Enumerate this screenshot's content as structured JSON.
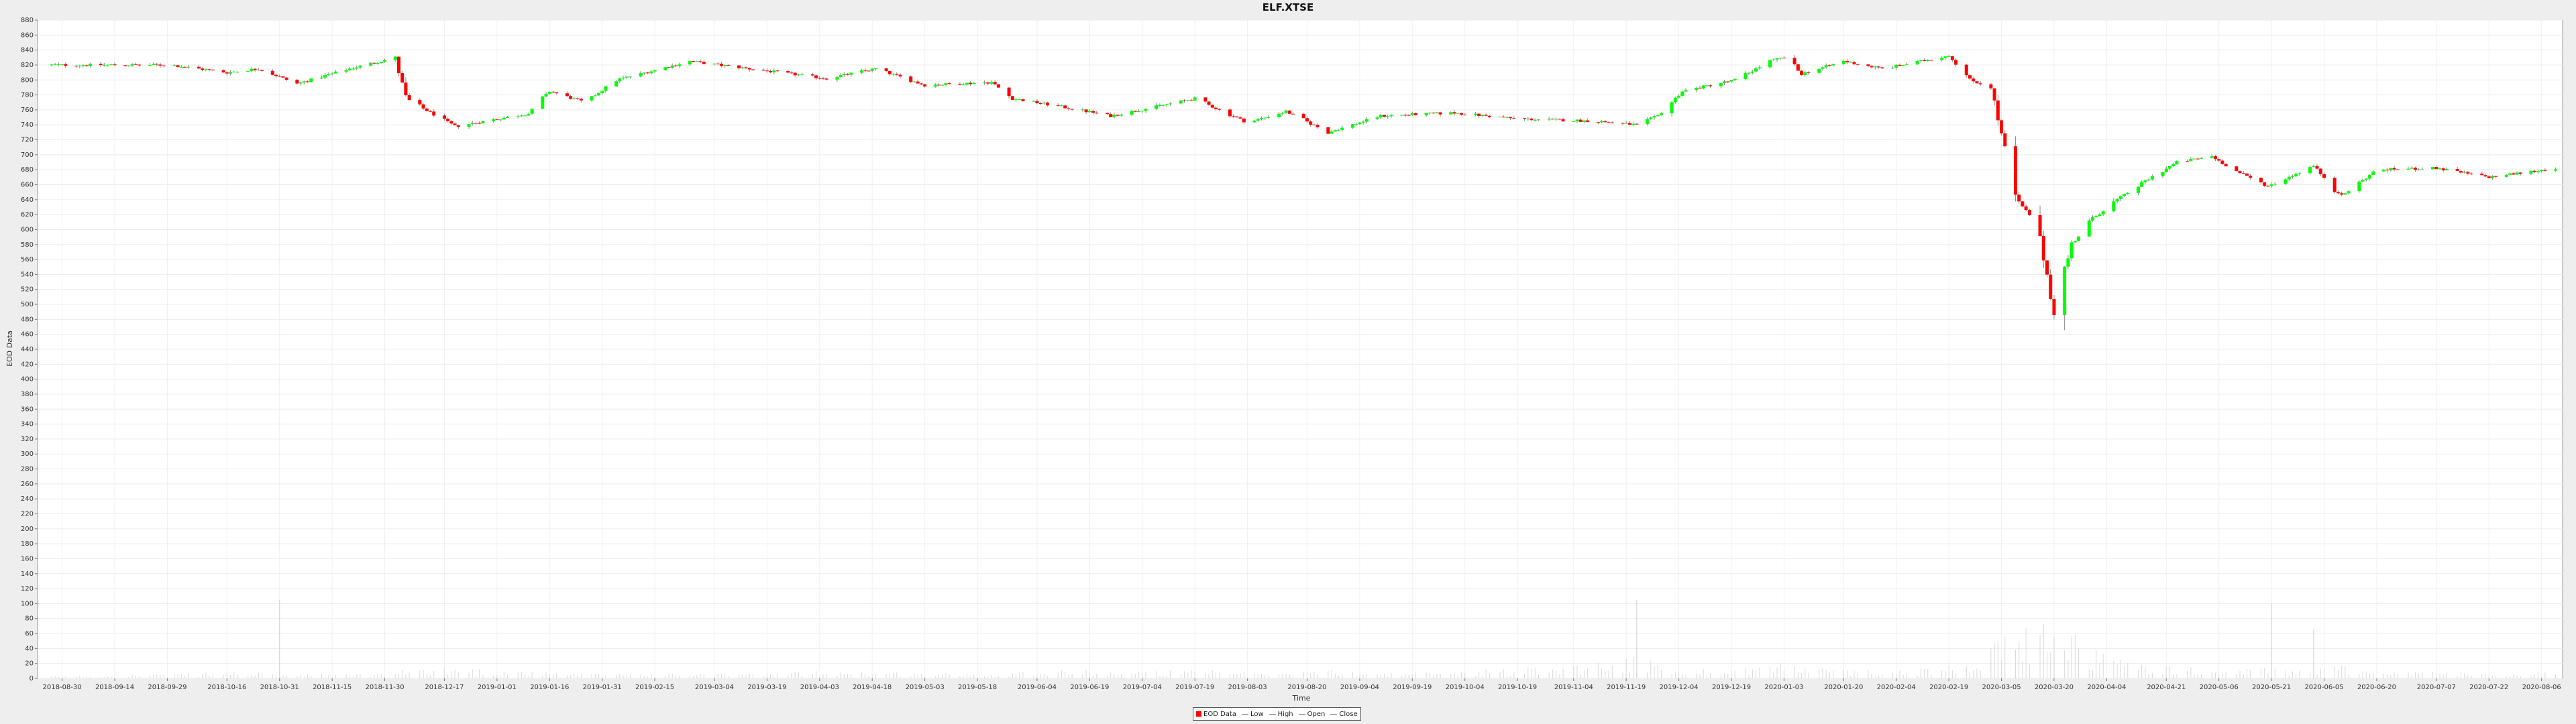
{
  "chart_data": {
    "type": "candlestick",
    "title": "ELF.XTSE",
    "xlabel": "Time",
    "ylabel": "EOD Data",
    "ylim": [
      0,
      880
    ],
    "y_ticks": [
      0,
      20,
      40,
      60,
      80,
      100,
      120,
      140,
      160,
      180,
      200,
      220,
      240,
      260,
      280,
      300,
      320,
      340,
      360,
      380,
      400,
      420,
      440,
      460,
      480,
      500,
      520,
      540,
      560,
      580,
      600,
      620,
      640,
      660,
      680,
      700,
      720,
      740,
      760,
      780,
      800,
      820,
      840,
      860,
      880
    ],
    "x_ticks": [
      "2018-08-30",
      "2018-09-14",
      "2018-09-29",
      "2018-10-16",
      "2018-10-31",
      "2018-11-15",
      "2018-11-30",
      "2018-12-17",
      "2019-01-01",
      "2019-01-16",
      "2019-01-31",
      "2019-02-15",
      "2019-03-04",
      "2019-03-19",
      "2019-04-03",
      "2019-04-18",
      "2019-05-03",
      "2019-05-18",
      "2019-06-04",
      "2019-06-19",
      "2019-07-04",
      "2019-07-19",
      "2019-08-03",
      "2019-08-20",
      "2019-09-04",
      "2019-09-19",
      "2019-10-04",
      "2019-10-19",
      "2019-11-04",
      "2019-11-19",
      "2019-12-04",
      "2019-12-19",
      "2020-01-03",
      "2020-01-20",
      "2020-02-04",
      "2020-02-19",
      "2020-03-05",
      "2020-03-20",
      "2020-04-04",
      "2020-04-21",
      "2020-05-06",
      "2020-05-21",
      "2020-06-05",
      "2020-06-20",
      "2020-07-07",
      "2020-07-22",
      "2020-08-06"
    ],
    "x_range": [
      "2018-08-23",
      "2020-08-12"
    ],
    "legend": [
      "EOD Data",
      "Low",
      "High",
      "Open",
      "Close"
    ],
    "legend_position": "bottom",
    "grid": true,
    "up_color": "#00ff00",
    "down_color": "#ff0000",
    "anchors": [
      {
        "x": "2018-08-27",
        "price": 820,
        "vol": 2
      },
      {
        "x": "2018-09-30",
        "price": 820,
        "vol": 4
      },
      {
        "x": "2018-10-16",
        "price": 810,
        "vol": 6
      },
      {
        "x": "2018-10-25",
        "price": 815,
        "vol": 5
      },
      {
        "x": "2018-11-05",
        "price": 795,
        "vol": 3
      },
      {
        "x": "2018-11-20",
        "price": 815,
        "vol": 4
      },
      {
        "x": "2018-12-03",
        "price": 830,
        "vol": 5
      },
      {
        "x": "2018-12-06",
        "price": 775,
        "vol": 8
      },
      {
        "x": "2018-12-20",
        "price": 738,
        "vol": 10
      },
      {
        "x": "2019-01-10",
        "price": 755,
        "vol": 6
      },
      {
        "x": "2019-01-16",
        "price": 785,
        "vol": 5
      },
      {
        "x": "2019-01-26",
        "price": 770,
        "vol": 4
      },
      {
        "x": "2019-02-04",
        "price": 800,
        "vol": 5
      },
      {
        "x": "2019-02-25",
        "price": 825,
        "vol": 4
      },
      {
        "x": "2019-03-19",
        "price": 812,
        "vol": 5
      },
      {
        "x": "2019-04-05",
        "price": 802,
        "vol": 7
      },
      {
        "x": "2019-04-19",
        "price": 815,
        "vol": 6
      },
      {
        "x": "2019-05-03",
        "price": 793,
        "vol": 5
      },
      {
        "x": "2019-05-22",
        "price": 797,
        "vol": 4
      },
      {
        "x": "2019-05-28",
        "price": 775,
        "vol": 6
      },
      {
        "x": "2019-06-10",
        "price": 765,
        "vol": 8
      },
      {
        "x": "2019-06-25",
        "price": 752,
        "vol": 6
      },
      {
        "x": "2019-07-19",
        "price": 775,
        "vol": 7
      },
      {
        "x": "2019-08-03",
        "price": 743,
        "vol": 6
      },
      {
        "x": "2019-08-14",
        "price": 758,
        "vol": 5
      },
      {
        "x": "2019-08-26",
        "price": 730,
        "vol": 7
      },
      {
        "x": "2019-09-10",
        "price": 752,
        "vol": 5
      },
      {
        "x": "2019-10-01",
        "price": 756,
        "vol": 6
      },
      {
        "x": "2019-10-19",
        "price": 748,
        "vol": 9
      },
      {
        "x": "2019-11-10",
        "price": 745,
        "vol": 14
      },
      {
        "x": "2019-11-22",
        "price": 740,
        "vol": 20
      },
      {
        "x": "2019-11-28",
        "price": 752,
        "vol": 12
      },
      {
        "x": "2019-12-05",
        "price": 785,
        "vol": 8
      },
      {
        "x": "2019-12-20",
        "price": 800,
        "vol": 9
      },
      {
        "x": "2019-12-30",
        "price": 825,
        "vol": 12
      },
      {
        "x": "2020-01-03",
        "price": 830,
        "vol": 15
      },
      {
        "x": "2020-01-08",
        "price": 808,
        "vol": 10
      },
      {
        "x": "2020-01-20",
        "price": 825,
        "vol": 8
      },
      {
        "x": "2020-01-31",
        "price": 815,
        "vol": 7
      },
      {
        "x": "2020-02-08",
        "price": 822,
        "vol": 8
      },
      {
        "x": "2020-02-19",
        "price": 833,
        "vol": 12
      },
      {
        "x": "2020-02-25",
        "price": 800,
        "vol": 20
      },
      {
        "x": "2020-03-02",
        "price": 790,
        "vol": 28
      },
      {
        "x": "2020-03-06",
        "price": 705,
        "vol": 35
      },
      {
        "x": "2020-03-09",
        "price": 640,
        "vol": 40
      },
      {
        "x": "2020-03-13",
        "price": 620,
        "vol": 45
      },
      {
        "x": "2020-03-17",
        "price": 565,
        "vol": 48
      },
      {
        "x": "2020-03-20",
        "price": 490,
        "vol": 52
      },
      {
        "x": "2020-03-25",
        "price": 580,
        "vol": 40
      },
      {
        "x": "2020-03-31",
        "price": 615,
        "vol": 28
      },
      {
        "x": "2020-04-07",
        "price": 640,
        "vol": 18
      },
      {
        "x": "2020-04-15",
        "price": 665,
        "vol": 14
      },
      {
        "x": "2020-04-24",
        "price": 690,
        "vol": 10
      },
      {
        "x": "2020-05-04",
        "price": 698,
        "vol": 8
      },
      {
        "x": "2020-05-10",
        "price": 680,
        "vol": 7
      },
      {
        "x": "2020-05-20",
        "price": 658,
        "vol": 10
      },
      {
        "x": "2020-06-02",
        "price": 685,
        "vol": 8
      },
      {
        "x": "2020-06-10",
        "price": 645,
        "vol": 12
      },
      {
        "x": "2020-06-20",
        "price": 680,
        "vol": 8
      },
      {
        "x": "2020-07-07",
        "price": 682,
        "vol": 6
      },
      {
        "x": "2020-07-22",
        "price": 670,
        "vol": 5
      },
      {
        "x": "2020-08-10",
        "price": 682,
        "vol": 6
      }
    ],
    "volume_spikes": [
      {
        "x": "2018-10-31",
        "vol": 105
      },
      {
        "x": "2019-11-22",
        "vol": 105
      },
      {
        "x": "2020-05-21",
        "vol": 100
      },
      {
        "x": "2020-06-02",
        "vol": 65
      },
      {
        "x": "2020-03-20",
        "vol": 55
      }
    ]
  }
}
